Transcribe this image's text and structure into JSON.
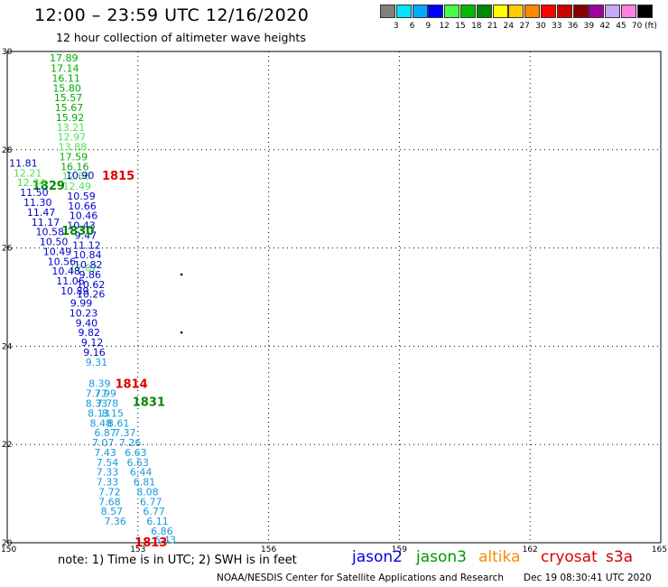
{
  "header": {
    "title": "12:00 – 23:59 UTC 12/16/2020",
    "subtitle": "12 hour collection of altimeter wave heights"
  },
  "color_scale": {
    "swatches": [
      "#808080",
      "#00e5ff",
      "#00aaff",
      "#0000ff",
      "#44ff44",
      "#00bb00",
      "#008800",
      "#ffff00",
      "#ffcc00",
      "#ff8800",
      "#ff0000",
      "#cc0000",
      "#880000",
      "#a000a0",
      "#c8a8ff",
      "#ff80e0",
      "#000000"
    ],
    "labels": [
      "3",
      "6",
      "9",
      "12",
      "15",
      "18",
      "21",
      "24",
      "27",
      "30",
      "33",
      "36",
      "39",
      "42",
      "45",
      "70 (ft)"
    ]
  },
  "map": {
    "lon_range": [
      150,
      165
    ],
    "lat_range": [
      20,
      30
    ],
    "x_ticks": [
      "150",
      "153",
      "156",
      "159",
      "162",
      "165"
    ],
    "y_ticks": [
      "30",
      "28",
      "26",
      "24",
      "22",
      "20"
    ],
    "colors": {
      "jason2": "#0000cc",
      "jason3": "#008800",
      "altika": "#ff8800",
      "cryosat": "#dd0000",
      "s3a": "#cc0000",
      "light_green": "#55dd55",
      "cyan_blue": "#1899dd",
      "green": "#00aa00"
    },
    "tracks": [
      {
        "id": "track-1829",
        "time_label": "1829",
        "time_color": "#008800",
        "time_lon": 150.95,
        "time_lat": 27.28,
        "points": [
          {
            "lon": 151.3,
            "lat": 29.87,
            "v": "17.89",
            "c": "#00aa00"
          },
          {
            "lon": 151.32,
            "lat": 29.66,
            "v": "17.14",
            "c": "#00aa00"
          },
          {
            "lon": 151.35,
            "lat": 29.46,
            "v": "16.11",
            "c": "#00aa00"
          },
          {
            "lon": 151.37,
            "lat": 29.26,
            "v": "15.80",
            "c": "#00aa00"
          },
          {
            "lon": 151.4,
            "lat": 29.06,
            "v": "15.57",
            "c": "#00aa00"
          },
          {
            "lon": 151.42,
            "lat": 28.86,
            "v": "15.67",
            "c": "#00aa00"
          },
          {
            "lon": 151.44,
            "lat": 28.66,
            "v": "15.92",
            "c": "#00aa00"
          },
          {
            "lon": 151.46,
            "lat": 28.46,
            "v": "13.21",
            "c": "#55dd55"
          },
          {
            "lon": 151.48,
            "lat": 28.26,
            "v": "12.97",
            "c": "#55dd55"
          },
          {
            "lon": 151.5,
            "lat": 28.06,
            "v": "13.88",
            "c": "#55dd55"
          },
          {
            "lon": 151.52,
            "lat": 27.86,
            "v": "17.59",
            "c": "#00aa00"
          },
          {
            "lon": 151.55,
            "lat": 27.66,
            "v": "16.16",
            "c": "#00aa00"
          },
          {
            "lon": 151.58,
            "lat": 27.46,
            "v": "12.66",
            "c": "#55dd55"
          },
          {
            "lon": 151.6,
            "lat": 27.26,
            "v": "12.49",
            "c": "#55dd55"
          },
          {
            "lon": 151.75,
            "lat": 25.6,
            "v": "12.02",
            "c": "#55dd55"
          }
        ]
      },
      {
        "id": "track-1815",
        "time_label": "1815",
        "time_color": "#dd0000",
        "time_lon": 152.55,
        "time_lat": 27.48,
        "points": [
          {
            "lon": 151.67,
            "lat": 27.48,
            "v": "10.90",
            "c": "#0000cc"
          },
          {
            "lon": 151.7,
            "lat": 27.06,
            "v": "10.59",
            "c": "#0000cc"
          },
          {
            "lon": 151.72,
            "lat": 26.86,
            "v": "10.66",
            "c": "#0000cc"
          },
          {
            "lon": 151.75,
            "lat": 26.66,
            "v": "10.46",
            "c": "#0000cc"
          },
          {
            "lon": 151.7,
            "lat": 26.46,
            "v": "10.43",
            "c": "#0000cc"
          },
          {
            "lon": 151.8,
            "lat": 26.26,
            "v": "9.47",
            "c": "#0000cc"
          },
          {
            "lon": 151.82,
            "lat": 26.06,
            "v": "11.12",
            "c": "#0000cc"
          },
          {
            "lon": 151.84,
            "lat": 25.86,
            "v": "10.84",
            "c": "#0000cc"
          },
          {
            "lon": 151.86,
            "lat": 25.66,
            "v": "10.82",
            "c": "#0000cc"
          },
          {
            "lon": 151.9,
            "lat": 25.46,
            "v": "9.86",
            "c": "#0000cc"
          },
          {
            "lon": 151.92,
            "lat": 25.26,
            "v": "10.62",
            "c": "#0000cc"
          },
          {
            "lon": 151.92,
            "lat": 25.06,
            "v": "10.26",
            "c": "#0000cc"
          }
        ]
      },
      {
        "id": "track-1830",
        "time_label": "1830",
        "time_color": "#008800",
        "time_lon": 151.62,
        "time_lat": 26.36,
        "points": [
          {
            "lon": 150.37,
            "lat": 27.73,
            "v": "11.81",
            "c": "#0000cc"
          },
          {
            "lon": 150.47,
            "lat": 27.53,
            "v": "12.21",
            "c": "#55dd55"
          },
          {
            "lon": 150.55,
            "lat": 27.33,
            "v": "12.34",
            "c": "#55dd55"
          },
          {
            "lon": 150.62,
            "lat": 27.13,
            "v": "11.50",
            "c": "#0000cc"
          },
          {
            "lon": 150.7,
            "lat": 26.93,
            "v": "11.30",
            "c": "#0000cc"
          },
          {
            "lon": 150.78,
            "lat": 26.73,
            "v": "11.47",
            "c": "#0000cc"
          },
          {
            "lon": 150.88,
            "lat": 26.53,
            "v": "11.17",
            "c": "#0000cc"
          },
          {
            "lon": 150.98,
            "lat": 26.33,
            "v": "10.58",
            "c": "#0000cc"
          },
          {
            "lon": 151.07,
            "lat": 26.13,
            "v": "10.50",
            "c": "#0000cc"
          },
          {
            "lon": 151.15,
            "lat": 25.93,
            "v": "10.49",
            "c": "#0000cc"
          },
          {
            "lon": 151.25,
            "lat": 25.73,
            "v": "10.56",
            "c": "#0000cc"
          },
          {
            "lon": 151.35,
            "lat": 25.53,
            "v": "10.48",
            "c": "#0000cc"
          },
          {
            "lon": 151.45,
            "lat": 25.33,
            "v": "11.06",
            "c": "#0000cc"
          },
          {
            "lon": 151.55,
            "lat": 25.13,
            "v": "10.89",
            "c": "#0000cc"
          },
          {
            "lon": 151.7,
            "lat": 24.88,
            "v": "9.99",
            "c": "#0000cc"
          },
          {
            "lon": 151.75,
            "lat": 24.68,
            "v": "10.23",
            "c": "#0000cc"
          },
          {
            "lon": 151.82,
            "lat": 24.48,
            "v": "9.40",
            "c": "#0000cc"
          },
          {
            "lon": 151.88,
            "lat": 24.28,
            "v": "9.82",
            "c": "#0000cc"
          },
          {
            "lon": 151.95,
            "lat": 24.08,
            "v": "9.12",
            "c": "#0000cc"
          },
          {
            "lon": 152.0,
            "lat": 23.88,
            "v": "9.16",
            "c": "#0000cc"
          },
          {
            "lon": 152.05,
            "lat": 23.68,
            "v": "9.31",
            "c": "#1899dd"
          }
        ]
      },
      {
        "id": "track-1814",
        "time_label": "1814",
        "time_color": "#dd0000",
        "time_lon": 152.85,
        "time_lat": 23.24,
        "points": [
          {
            "lon": 152.12,
            "lat": 23.24,
            "v": "8.39",
            "c": "#1899dd"
          },
          {
            "lon": 152.25,
            "lat": 23.04,
            "v": "7.99",
            "c": "#1899dd"
          },
          {
            "lon": 152.3,
            "lat": 22.84,
            "v": "7.78",
            "c": "#1899dd"
          },
          {
            "lon": 152.42,
            "lat": 22.64,
            "v": "8.15",
            "c": "#1899dd"
          },
          {
            "lon": 152.55,
            "lat": 22.44,
            "v": "8.61",
            "c": "#1899dd"
          },
          {
            "lon": 152.7,
            "lat": 22.24,
            "v": "7.37",
            "c": "#1899dd"
          },
          {
            "lon": 152.82,
            "lat": 22.04,
            "v": "7.26",
            "c": "#1899dd"
          },
          {
            "lon": 152.95,
            "lat": 21.84,
            "v": "6.63",
            "c": "#1899dd"
          },
          {
            "lon": 153.0,
            "lat": 21.64,
            "v": "6.63",
            "c": "#1899dd"
          },
          {
            "lon": 153.07,
            "lat": 21.44,
            "v": "6.44",
            "c": "#1899dd"
          },
          {
            "lon": 153.15,
            "lat": 21.24,
            "v": "6.81",
            "c": "#1899dd"
          },
          {
            "lon": 153.22,
            "lat": 21.04,
            "v": "8.08",
            "c": "#1899dd"
          },
          {
            "lon": 153.3,
            "lat": 20.84,
            "v": "6.77",
            "c": "#1899dd"
          },
          {
            "lon": 153.37,
            "lat": 20.64,
            "v": "6.77",
            "c": "#1899dd"
          },
          {
            "lon": 153.45,
            "lat": 20.44,
            "v": "6.11",
            "c": "#1899dd"
          },
          {
            "lon": 153.55,
            "lat": 20.24,
            "v": "6.86",
            "c": "#1899dd"
          },
          {
            "lon": 153.62,
            "lat": 20.06,
            "v": "6.43",
            "c": "#1899dd"
          }
        ]
      },
      {
        "id": "track-1831",
        "time_label": "1831",
        "time_color": "#008800",
        "time_lon": 153.25,
        "time_lat": 22.88,
        "points": [
          {
            "lon": 152.05,
            "lat": 23.04,
            "v": "7.77",
            "c": "#1899dd"
          },
          {
            "lon": 152.05,
            "lat": 22.84,
            "v": "8.33",
            "c": "#1899dd"
          },
          {
            "lon": 152.1,
            "lat": 22.64,
            "v": "8.13",
            "c": "#1899dd"
          },
          {
            "lon": 152.15,
            "lat": 22.44,
            "v": "8.48",
            "c": "#1899dd"
          },
          {
            "lon": 152.25,
            "lat": 22.24,
            "v": "6.87",
            "c": "#1899dd"
          },
          {
            "lon": 152.2,
            "lat": 22.04,
            "v": "7.07",
            "c": "#1899dd"
          },
          {
            "lon": 152.25,
            "lat": 21.84,
            "v": "7.43",
            "c": "#1899dd"
          },
          {
            "lon": 152.3,
            "lat": 21.64,
            "v": "7.54",
            "c": "#1899dd"
          },
          {
            "lon": 152.3,
            "lat": 21.44,
            "v": "7.33",
            "c": "#1899dd"
          },
          {
            "lon": 152.3,
            "lat": 21.24,
            "v": "7.33",
            "c": "#1899dd"
          },
          {
            "lon": 152.35,
            "lat": 21.04,
            "v": "7.72",
            "c": "#1899dd"
          },
          {
            "lon": 152.35,
            "lat": 20.84,
            "v": "7.68",
            "c": "#1899dd"
          },
          {
            "lon": 152.4,
            "lat": 20.64,
            "v": "8.57",
            "c": "#1899dd"
          },
          {
            "lon": 152.48,
            "lat": 20.44,
            "v": "7.36",
            "c": "#1899dd"
          }
        ]
      },
      {
        "id": "track-1813",
        "time_label": "1813",
        "time_color": "#dd0000",
        "time_lon": 153.3,
        "time_lat": 20.02,
        "points": []
      }
    ],
    "dots": [
      {
        "lon": 154.0,
        "lat": 25.46
      },
      {
        "lon": 154.0,
        "lat": 24.28
      }
    ]
  },
  "footer": {
    "note": "note:  1) Time is in UTC;  2) SWH is in feet",
    "legend": [
      {
        "name": "jason2",
        "color": "#0000dd"
      },
      {
        "name": "jason3",
        "color": "#009900"
      },
      {
        "name": "altika",
        "color": "#ff8800"
      },
      {
        "name": "cryosat",
        "color": "#dd0000"
      },
      {
        "name": "s3a",
        "color": "#cc0000"
      }
    ],
    "credit": "NOAA/NESDIS Center for Satellite Applications and Research",
    "timestamp": "Dec 19 08:30:41 UTC 2020"
  }
}
